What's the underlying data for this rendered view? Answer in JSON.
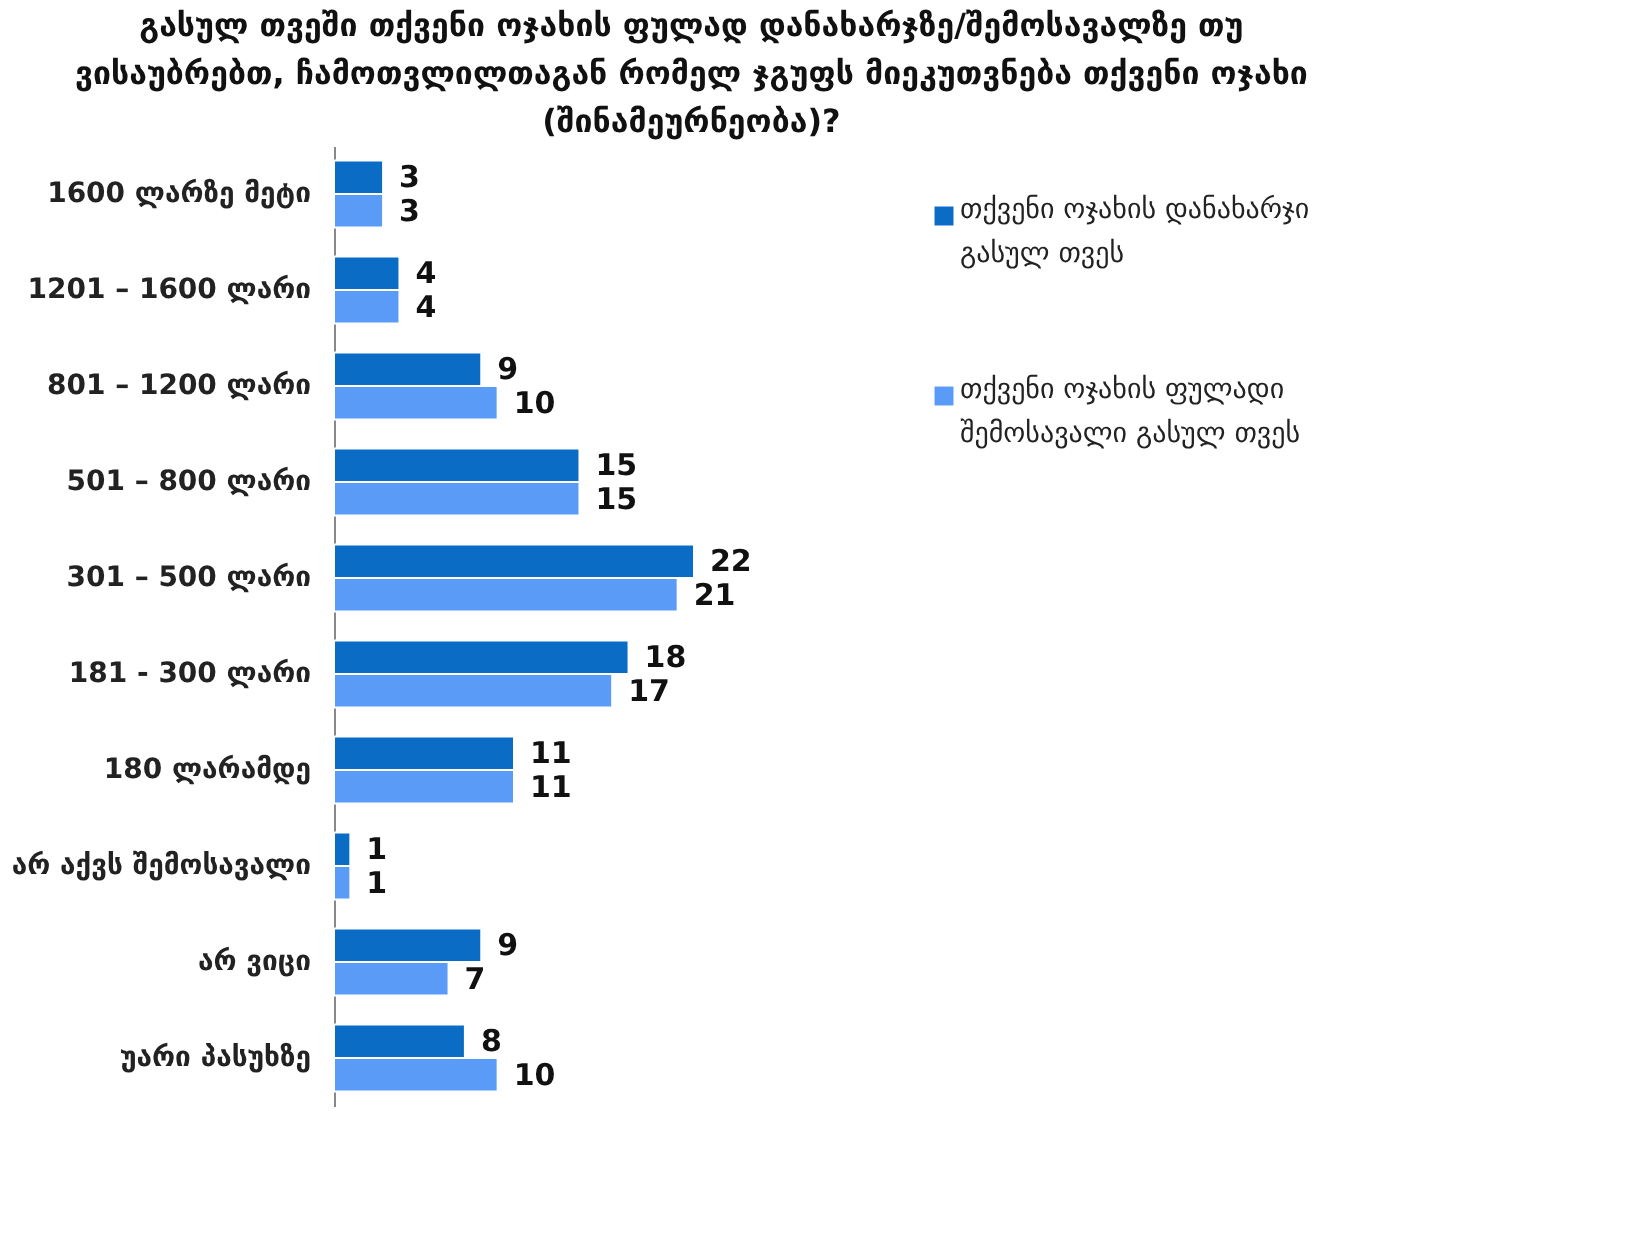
{
  "chart_data": {
    "type": "bar",
    "orientation": "horizontal",
    "title": "გასულ თვეში თქვენი ოჯახის ფულად დანახარჯზე/შემოსავალზე თუ ვისაუბრებთ, ჩამოთვლილთაგან რომელ ჯგუფს მიეკუთვნება თქვენი ოჯახი (შინამეურნეობა)?",
    "categories": [
      "1600 ლარზე მეტი",
      "1201 – 1600 ლარი",
      "801 – 1200 ლარი",
      "501 – 800 ლარი",
      "301 – 500 ლარი",
      "181 - 300 ლარი",
      "180 ლარამდე",
      "არ აქვს შემოსავალი",
      "არ ვიცი",
      "უარი პასუხზე"
    ],
    "series": [
      {
        "name": "თქვენი ოჯახის დანახარჯი გასულ თვეს",
        "color": "#0a6cc4",
        "values": [
          3,
          4,
          9,
          15,
          22,
          18,
          11,
          1,
          9,
          8
        ]
      },
      {
        "name": "თქვენი ოჯახის ფულადი შემოსავალი გასულ თვეს",
        "color": "#5b9bf8",
        "values": [
          3,
          4,
          10,
          15,
          21,
          17,
          11,
          1,
          7,
          10
        ]
      }
    ],
    "data_labels": true,
    "legend": "right",
    "grid": false
  }
}
